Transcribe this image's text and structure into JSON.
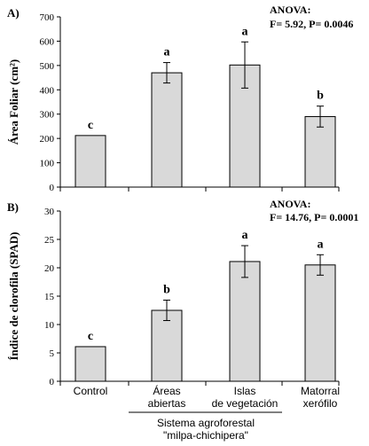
{
  "colors": {
    "bar_fill": "#d9d9d9",
    "bar_stroke": "#000000",
    "axis": "#000000"
  },
  "categories": [
    "Control",
    "Áreas abiertas",
    "Islas de vegetación",
    "Matorral xerófilo"
  ],
  "category_labels": [
    [
      "Control"
    ],
    [
      "Áreas",
      "abiertas"
    ],
    [
      "Islas",
      "de vegetación"
    ],
    [
      "Matorral",
      "xerófilo"
    ]
  ],
  "group_label": [
    "Sistema agroforestal",
    "\"milpa-chichipera\""
  ],
  "chart_data": [
    {
      "type": "bar",
      "panel_label": "A)",
      "ylabel": "Área Foliar (cm²)",
      "categories": [
        "Control",
        "Áreas abiertas",
        "Islas de vegetación",
        "Matorral xerófilo"
      ],
      "values": [
        212,
        470,
        502,
        290
      ],
      "errors": [
        0,
        42,
        95,
        43
      ],
      "letters": [
        "c",
        "a",
        "a",
        "b"
      ],
      "ylim": [
        0,
        700
      ],
      "yticks": [
        0,
        100,
        200,
        300,
        400,
        500,
        600,
        700
      ],
      "anova": [
        "ANOVA:",
        "F= 5.92,  P= 0.0046"
      ],
      "grid": false
    },
    {
      "type": "bar",
      "panel_label": "B)",
      "ylabel": "Índice de clorofila (SPAD)",
      "categories": [
        "Control",
        "Áreas abiertas",
        "Islas de vegetación",
        "Matorral xerófilo"
      ],
      "values": [
        6.1,
        12.5,
        21.1,
        20.5
      ],
      "errors": [
        0,
        1.8,
        2.8,
        1.8
      ],
      "letters": [
        "c",
        "b",
        "a",
        "a"
      ],
      "ylim": [
        0,
        30
      ],
      "yticks": [
        0,
        5,
        10,
        15,
        20,
        25,
        30
      ],
      "anova": [
        "ANOVA:",
        "F= 14.76,  P= 0.0001"
      ],
      "grid": false
    }
  ]
}
